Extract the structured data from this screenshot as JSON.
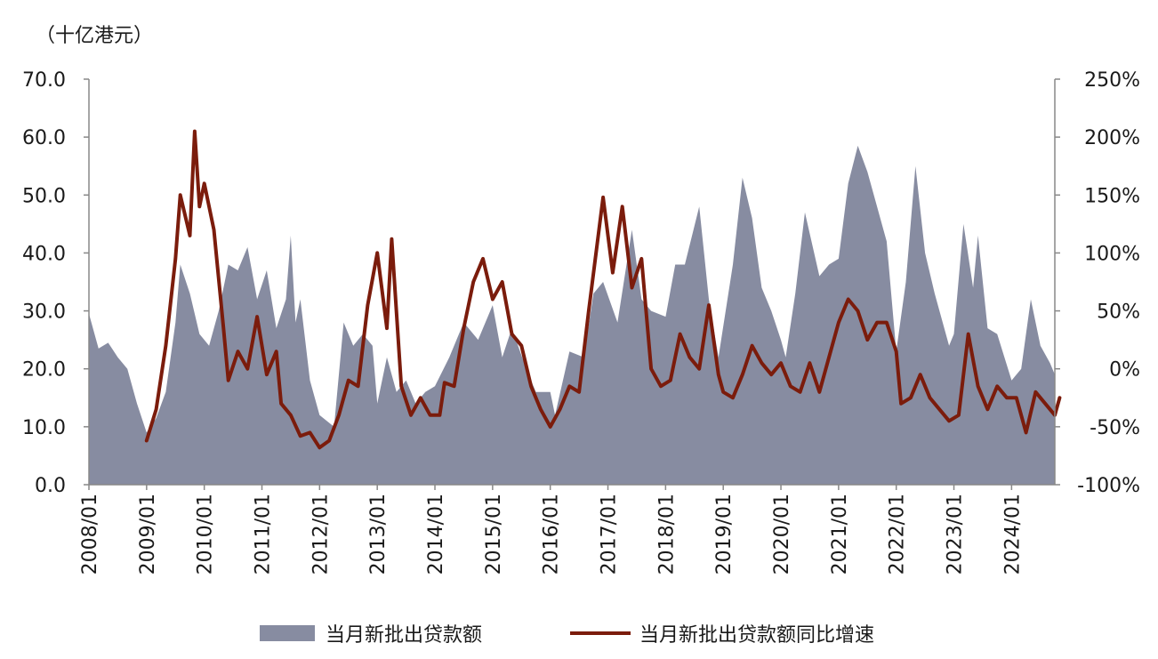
{
  "chart_data": {
    "type": "area",
    "unit_label": "（十亿港元）",
    "left_axis": {
      "ticks": [
        "0.0",
        "10.0",
        "20.0",
        "30.0",
        "40.0",
        "50.0",
        "60.0",
        "70.0"
      ],
      "min": 0,
      "max": 70
    },
    "right_axis": {
      "ticks": [
        "-100%",
        "-50%",
        "0%",
        "50%",
        "100%",
        "150%",
        "200%",
        "250%"
      ],
      "min": -100,
      "max": 250
    },
    "x_ticks": [
      "2008/01",
      "2009/01",
      "2010/01",
      "2011/01",
      "2012/01",
      "2013/01",
      "2014/01",
      "2015/01",
      "2016/01",
      "2017/01",
      "2018/01",
      "2019/01",
      "2020/01",
      "2021/01",
      "2022/01",
      "2023/01",
      "2024/01"
    ],
    "start": "2008/01",
    "end": "2024/10",
    "grid": false,
    "legend_position": "bottom",
    "colors": {
      "area": "#878ca1",
      "line": "#7b1c0c"
    },
    "series": [
      {
        "name": "当月新批出贷款额",
        "type": "area",
        "axis": "left",
        "points": [
          [
            "2008/01",
            29.5
          ],
          [
            "2008/03",
            23.5
          ],
          [
            "2008/05",
            24.5
          ],
          [
            "2008/07",
            22
          ],
          [
            "2008/09",
            20
          ],
          [
            "2008/11",
            14
          ],
          [
            "2009/01",
            9
          ],
          [
            "2009/03",
            11.5
          ],
          [
            "2009/05",
            16
          ],
          [
            "2009/07",
            28
          ],
          [
            "2009/08",
            38
          ],
          [
            "2009/10",
            33
          ],
          [
            "2009/12",
            26
          ],
          [
            "2010/02",
            24
          ],
          [
            "2010/04",
            30
          ],
          [
            "2010/06",
            38
          ],
          [
            "2010/08",
            37
          ],
          [
            "2010/10",
            41
          ],
          [
            "2010/12",
            32
          ],
          [
            "2011/02",
            37
          ],
          [
            "2011/04",
            27
          ],
          [
            "2011/06",
            32
          ],
          [
            "2011/07",
            43
          ],
          [
            "2011/08",
            28
          ],
          [
            "2011/09",
            32
          ],
          [
            "2011/11",
            18
          ],
          [
            "2012/01",
            12
          ],
          [
            "2012/04",
            10
          ],
          [
            "2012/06",
            28
          ],
          [
            "2012/08",
            24
          ],
          [
            "2012/10",
            26
          ],
          [
            "2012/12",
            24
          ],
          [
            "2013/01",
            14
          ],
          [
            "2013/03",
            22
          ],
          [
            "2013/05",
            16
          ],
          [
            "2013/07",
            18
          ],
          [
            "2013/09",
            14
          ],
          [
            "2013/11",
            16
          ],
          [
            "2014/01",
            17
          ],
          [
            "2014/04",
            22
          ],
          [
            "2014/07",
            28
          ],
          [
            "2014/10",
            25
          ],
          [
            "2015/01",
            31
          ],
          [
            "2015/03",
            22
          ],
          [
            "2015/05",
            27
          ],
          [
            "2015/08",
            20
          ],
          [
            "2015/10",
            16
          ],
          [
            "2016/01",
            16
          ],
          [
            "2016/02",
            12
          ],
          [
            "2016/05",
            23
          ],
          [
            "2016/08",
            22
          ],
          [
            "2016/10",
            33
          ],
          [
            "2016/12",
            35
          ],
          [
            "2017/03",
            28
          ],
          [
            "2017/06",
            44
          ],
          [
            "2017/08",
            32
          ],
          [
            "2017/10",
            30
          ],
          [
            "2018/01",
            29
          ],
          [
            "2018/03",
            38
          ],
          [
            "2018/05",
            38
          ],
          [
            "2018/08",
            48
          ],
          [
            "2018/10",
            32
          ],
          [
            "2018/12",
            22
          ],
          [
            "2019/03",
            38
          ],
          [
            "2019/05",
            53
          ],
          [
            "2019/07",
            46
          ],
          [
            "2019/09",
            34
          ],
          [
            "2019/11",
            30
          ],
          [
            "2020/01",
            25
          ],
          [
            "2020/02",
            22
          ],
          [
            "2020/04",
            33
          ],
          [
            "2020/06",
            47
          ],
          [
            "2020/09",
            36
          ],
          [
            "2020/11",
            38
          ],
          [
            "2021/01",
            39
          ],
          [
            "2021/03",
            52
          ],
          [
            "2021/05",
            58.5
          ],
          [
            "2021/07",
            54
          ],
          [
            "2021/09",
            48
          ],
          [
            "2021/11",
            42
          ],
          [
            "2022/01",
            23
          ],
          [
            "2022/03",
            35
          ],
          [
            "2022/05",
            55
          ],
          [
            "2022/07",
            40
          ],
          [
            "2022/09",
            33
          ],
          [
            "2022/12",
            24
          ],
          [
            "2023/01",
            26
          ],
          [
            "2023/03",
            45
          ],
          [
            "2023/05",
            34
          ],
          [
            "2023/06",
            43
          ],
          [
            "2023/08",
            27
          ],
          [
            "2023/10",
            26
          ],
          [
            "2024/01",
            18
          ],
          [
            "2024/03",
            20
          ],
          [
            "2024/05",
            32
          ],
          [
            "2024/07",
            24
          ],
          [
            "2024/09",
            21
          ],
          [
            "2024/10",
            19
          ]
        ]
      },
      {
        "name": "当月新批出贷款额同比增速",
        "type": "line",
        "axis": "right",
        "points": [
          [
            "2009/01",
            -62
          ],
          [
            "2009/03",
            -35
          ],
          [
            "2009/05",
            20
          ],
          [
            "2009/07",
            95
          ],
          [
            "2009/08",
            150
          ],
          [
            "2009/10",
            115
          ],
          [
            "2009/11",
            205
          ],
          [
            "2009/12",
            140
          ],
          [
            "2010/01",
            160
          ],
          [
            "2010/03",
            120
          ],
          [
            "2010/05",
            35
          ],
          [
            "2010/06",
            -10
          ],
          [
            "2010/08",
            15
          ],
          [
            "2010/10",
            0
          ],
          [
            "2010/12",
            45
          ],
          [
            "2011/02",
            -5
          ],
          [
            "2011/04",
            15
          ],
          [
            "2011/05",
            -30
          ],
          [
            "2011/07",
            -40
          ],
          [
            "2011/09",
            -58
          ],
          [
            "2011/11",
            -55
          ],
          [
            "2012/01",
            -68
          ],
          [
            "2012/03",
            -62
          ],
          [
            "2012/05",
            -40
          ],
          [
            "2012/07",
            -10
          ],
          [
            "2012/09",
            -15
          ],
          [
            "2012/11",
            55
          ],
          [
            "2013/01",
            100
          ],
          [
            "2013/03",
            35
          ],
          [
            "2013/04",
            112
          ],
          [
            "2013/06",
            -15
          ],
          [
            "2013/08",
            -40
          ],
          [
            "2013/10",
            -25
          ],
          [
            "2013/12",
            -40
          ],
          [
            "2014/02",
            -40
          ],
          [
            "2014/03",
            -12
          ],
          [
            "2014/05",
            -15
          ],
          [
            "2014/07",
            35
          ],
          [
            "2014/09",
            75
          ],
          [
            "2014/11",
            95
          ],
          [
            "2015/01",
            60
          ],
          [
            "2015/03",
            75
          ],
          [
            "2015/05",
            30
          ],
          [
            "2015/07",
            20
          ],
          [
            "2015/09",
            -15
          ],
          [
            "2015/11",
            -35
          ],
          [
            "2016/01",
            -50
          ],
          [
            "2016/03",
            -35
          ],
          [
            "2016/05",
            -15
          ],
          [
            "2016/07",
            -20
          ],
          [
            "2016/09",
            50
          ],
          [
            "2016/12",
            148
          ],
          [
            "2017/02",
            83
          ],
          [
            "2017/04",
            140
          ],
          [
            "2017/06",
            70
          ],
          [
            "2017/08",
            95
          ],
          [
            "2017/10",
            0
          ],
          [
            "2017/12",
            -15
          ],
          [
            "2018/02",
            -10
          ],
          [
            "2018/04",
            30
          ],
          [
            "2018/06",
            10
          ],
          [
            "2018/08",
            0
          ],
          [
            "2018/10",
            55
          ],
          [
            "2018/12",
            -5
          ],
          [
            "2019/01",
            -20
          ],
          [
            "2019/03",
            -25
          ],
          [
            "2019/05",
            -5
          ],
          [
            "2019/07",
            20
          ],
          [
            "2019/09",
            5
          ],
          [
            "2019/11",
            -5
          ],
          [
            "2020/01",
            5
          ],
          [
            "2020/03",
            -15
          ],
          [
            "2020/05",
            -20
          ],
          [
            "2020/07",
            5
          ],
          [
            "2020/09",
            -20
          ],
          [
            "2020/11",
            10
          ],
          [
            "2021/01",
            40
          ],
          [
            "2021/03",
            60
          ],
          [
            "2021/05",
            50
          ],
          [
            "2021/07",
            25
          ],
          [
            "2021/09",
            40
          ],
          [
            "2021/11",
            40
          ],
          [
            "2022/01",
            15
          ],
          [
            "2022/02",
            -30
          ],
          [
            "2022/04",
            -25
          ],
          [
            "2022/06",
            -5
          ],
          [
            "2022/08",
            -25
          ],
          [
            "2022/10",
            -35
          ],
          [
            "2022/12",
            -45
          ],
          [
            "2023/02",
            -40
          ],
          [
            "2023/04",
            30
          ],
          [
            "2023/06",
            -15
          ],
          [
            "2023/08",
            -35
          ],
          [
            "2023/10",
            -15
          ],
          [
            "2023/12",
            -25
          ],
          [
            "2024/02",
            -25
          ],
          [
            "2024/04",
            -55
          ],
          [
            "2024/06",
            -20
          ],
          [
            "2024/08",
            -30
          ],
          [
            "2024/10",
            -40
          ],
          [
            "2024/11",
            -25
          ]
        ]
      }
    ]
  }
}
